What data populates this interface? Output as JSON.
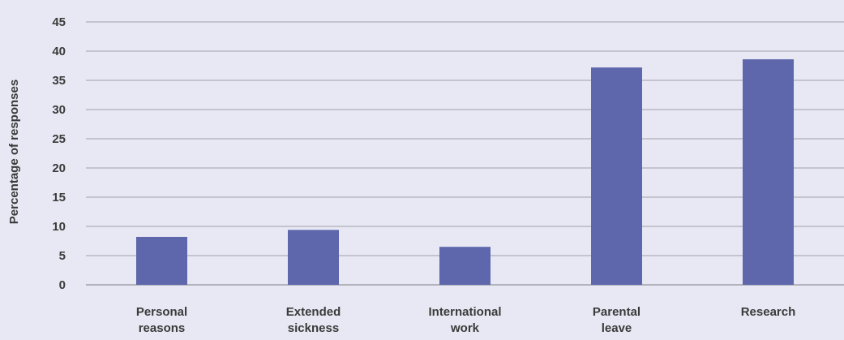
{
  "chart_data": {
    "type": "bar",
    "title": "",
    "xlabel": "",
    "ylabel": "Percentage of responses",
    "ylim": [
      0,
      45
    ],
    "yticks": [
      0,
      5,
      10,
      15,
      20,
      25,
      30,
      35,
      40,
      45
    ],
    "grid": true,
    "legend": "none",
    "categories": [
      [
        "Personal",
        "reasons"
      ],
      [
        "Extended",
        "sickness"
      ],
      [
        "International",
        "work"
      ],
      [
        "Parental",
        "leave"
      ],
      [
        "Research"
      ]
    ],
    "values": [
      8.2,
      9.4,
      6.5,
      37.2,
      38.6
    ],
    "colors": {
      "bar": "#5e67ab",
      "grid": "#a0a0a8",
      "background": "#e8e8f4",
      "text": "#3a3a3a"
    }
  }
}
